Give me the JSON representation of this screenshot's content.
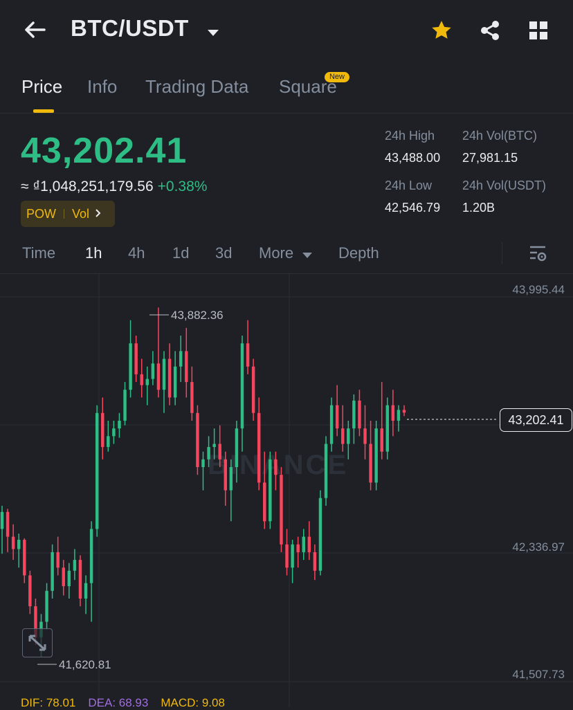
{
  "header": {
    "pair": "BTC/USDT",
    "icons": [
      "back-arrow-icon",
      "dropdown-caret-icon",
      "star-icon",
      "share-icon",
      "grid-icon"
    ]
  },
  "tabs": [
    {
      "label": "Price",
      "active": true
    },
    {
      "label": "Info",
      "active": false
    },
    {
      "label": "Trading Data",
      "active": false
    },
    {
      "label": "Square",
      "active": false,
      "badge": "New"
    }
  ],
  "price": {
    "last": "43,202.41",
    "fiat": "≈ ₫1,048,251,179.56",
    "change_pct": "+0.38%",
    "tags": [
      "POW",
      "Vol"
    ]
  },
  "stats": {
    "high_label": "24h High",
    "high_value": "43,488.00",
    "vol_btc_label": "24h Vol(BTC)",
    "vol_btc_value": "27,981.15",
    "low_label": "24h Low",
    "low_value": "42,546.79",
    "vol_usdt_label": "24h Vol(USDT)",
    "vol_usdt_value": "1.20B"
  },
  "intervals": [
    {
      "label": "Time",
      "active": false
    },
    {
      "label": "1h",
      "active": true
    },
    {
      "label": "4h",
      "active": false
    },
    {
      "label": "1d",
      "active": false
    },
    {
      "label": "3d",
      "active": false
    },
    {
      "label": "More",
      "active": false
    },
    {
      "label": "Depth",
      "active": false
    }
  ],
  "chart_data": {
    "type": "candlestick",
    "y_ticks": [
      "43,995.44",
      "42,336.97",
      "41,507.73"
    ],
    "high_marker": "43,882.36",
    "low_marker": "41,620.81",
    "last_price_tag": "43,202.41",
    "watermark": "BINANCE",
    "colors": {
      "up": "#2ebd85",
      "down": "#f6465d"
    },
    "candles": [
      [
        42450,
        42600,
        42290,
        42560
      ],
      [
        42560,
        42580,
        42300,
        42400
      ],
      [
        42400,
        42480,
        42250,
        42320
      ],
      [
        42320,
        42420,
        42200,
        42380
      ],
      [
        42380,
        42390,
        42100,
        42150
      ],
      [
        42150,
        42180,
        41900,
        41950
      ],
      [
        41950,
        42000,
        41700,
        41750
      ],
      [
        41750,
        41900,
        41620,
        41850
      ],
      [
        41850,
        42100,
        41800,
        42050
      ],
      [
        42050,
        42350,
        42000,
        42300
      ],
      [
        42300,
        42400,
        42150,
        42200
      ],
      [
        42200,
        42250,
        42020,
        42080
      ],
      [
        42080,
        42230,
        42000,
        42180
      ],
      [
        42180,
        42320,
        42120,
        42250
      ],
      [
        42250,
        42280,
        41950,
        42000
      ],
      [
        42000,
        42150,
        41900,
        42100
      ],
      [
        42100,
        42500,
        41850,
        42450
      ],
      [
        42450,
        43250,
        42400,
        43200
      ],
      [
        43200,
        43300,
        42900,
        42980
      ],
      [
        42980,
        43150,
        42950,
        43050
      ],
      [
        43050,
        43150,
        43000,
        43100
      ],
      [
        43100,
        43200,
        43040,
        43150
      ],
      [
        43150,
        43400,
        43120,
        43350
      ],
      [
        43350,
        43800,
        43300,
        43650
      ],
      [
        43650,
        43700,
        43400,
        43450
      ],
      [
        43450,
        43550,
        43300,
        43380
      ],
      [
        43380,
        43500,
        43250,
        43420
      ],
      [
        43420,
        43600,
        43380,
        43520
      ],
      [
        43520,
        43882,
        43300,
        43350
      ],
      [
        43350,
        43600,
        43200,
        43550
      ],
      [
        43550,
        43650,
        43250,
        43300
      ],
      [
        43300,
        43600,
        43250,
        43500
      ],
      [
        43500,
        43700,
        43400,
        43600
      ],
      [
        43600,
        43750,
        43300,
        43400
      ],
      [
        43400,
        43500,
        43150,
        43200
      ],
      [
        43200,
        43250,
        42800,
        42850
      ],
      [
        42850,
        42950,
        42700,
        42900
      ],
      [
        42900,
        43050,
        42850,
        42980
      ],
      [
        42980,
        43100,
        42900,
        43000
      ],
      [
        43000,
        43120,
        42850,
        42900
      ],
      [
        42900,
        42950,
        42600,
        42700
      ],
      [
        42700,
        42900,
        42500,
        42850
      ],
      [
        42850,
        43150,
        42750,
        43100
      ],
      [
        43100,
        43700,
        42950,
        43650
      ],
      [
        43650,
        43800,
        43450,
        43500
      ],
      [
        43500,
        43550,
        43150,
        43200
      ],
      [
        43200,
        43300,
        42700,
        42750
      ],
      [
        42750,
        42950,
        42450,
        42500
      ],
      [
        42500,
        42950,
        42450,
        42900
      ],
      [
        42900,
        42950,
        42700,
        42800
      ],
      [
        42800,
        42850,
        42300,
        42350
      ],
      [
        42350,
        42450,
        42150,
        42200
      ],
      [
        42200,
        42380,
        42100,
        42350
      ],
      [
        42350,
        42400,
        42200,
        42300
      ],
      [
        42300,
        42450,
        42250,
        42400
      ],
      [
        42400,
        42500,
        42250,
        42300
      ],
      [
        42300,
        42350,
        42120,
        42180
      ],
      [
        42180,
        42700,
        42150,
        42650
      ],
      [
        42650,
        43050,
        42600,
        43000
      ],
      [
        43000,
        43300,
        42950,
        43250
      ],
      [
        43250,
        43380,
        43050,
        43100
      ],
      [
        43100,
        43250,
        42950,
        43000
      ],
      [
        43000,
        43150,
        42900,
        43100
      ],
      [
        43100,
        43320,
        43000,
        43280
      ],
      [
        43280,
        43350,
        43050,
        43100
      ],
      [
        43100,
        43250,
        42900,
        43000
      ],
      [
        43000,
        43150,
        42700,
        42750
      ],
      [
        42750,
        43150,
        42700,
        43100
      ],
      [
        43100,
        43400,
        42900,
        42950
      ],
      [
        42950,
        43300,
        42900,
        43250
      ],
      [
        43250,
        43350,
        43050,
        43150
      ],
      [
        43150,
        43250,
        43080,
        43220
      ],
      [
        43220,
        43250,
        43180,
        43202
      ]
    ]
  },
  "indicators": {
    "dif": "DIF: 78.01",
    "dea": "DEA: 68.93",
    "macd": "MACD: 9.08"
  }
}
